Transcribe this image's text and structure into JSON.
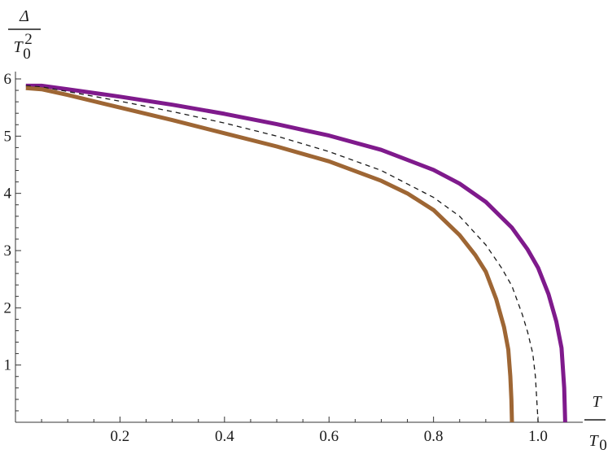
{
  "chart_data": {
    "type": "line",
    "title": "",
    "xlabel": {
      "numerator": "T",
      "denominator": "T",
      "denominator_subscript": "0"
    },
    "ylabel": {
      "numerator": "Δ",
      "denominator": "T",
      "denominator_subscript": "0",
      "denominator_superscript": "2"
    },
    "xlim": [
      0,
      1.07
    ],
    "ylim": [
      0,
      6
    ],
    "xticks": [
      "0.2",
      "0.4",
      "0.6",
      "0.8",
      "1.0"
    ],
    "xtick_values": [
      0.2,
      0.4,
      0.6,
      0.8,
      1.0
    ],
    "yticks": [
      "1",
      "2",
      "3",
      "4",
      "5",
      "6"
    ],
    "ytick_values": [
      1,
      2,
      3,
      4,
      5,
      6
    ],
    "grid": false,
    "legend": "none",
    "series": [
      {
        "color": "#7f1a8c",
        "style": "solid",
        "x": [
          0.02,
          0.05,
          0.1,
          0.2,
          0.3,
          0.4,
          0.5,
          0.6,
          0.7,
          0.8,
          0.85,
          0.9,
          0.95,
          0.98,
          1.0,
          1.02,
          1.035,
          1.045,
          1.05,
          1.052
        ],
        "y": [
          5.88,
          5.88,
          5.82,
          5.69,
          5.55,
          5.39,
          5.21,
          5.01,
          4.76,
          4.41,
          4.17,
          3.85,
          3.4,
          3.02,
          2.7,
          2.24,
          1.76,
          1.3,
          0.6,
          0
        ]
      },
      {
        "color": "#1a1a1a",
        "style": "dashed",
        "x": [
          0.02,
          0.05,
          0.1,
          0.2,
          0.3,
          0.4,
          0.5,
          0.6,
          0.7,
          0.8,
          0.85,
          0.9,
          0.93,
          0.95,
          0.97,
          0.98,
          0.99,
          0.995,
          1.0
        ],
        "y": [
          5.88,
          5.86,
          5.78,
          5.61,
          5.43,
          5.23,
          5.0,
          4.73,
          4.4,
          3.93,
          3.6,
          3.1,
          2.7,
          2.38,
          1.88,
          1.58,
          1.2,
          0.8,
          0
        ]
      },
      {
        "color": "#9e6634",
        "style": "solid",
        "x": [
          0.02,
          0.05,
          0.1,
          0.2,
          0.3,
          0.4,
          0.5,
          0.6,
          0.7,
          0.75,
          0.8,
          0.85,
          0.88,
          0.9,
          0.92,
          0.935,
          0.943,
          0.947,
          0.949,
          0.95
        ],
        "y": [
          5.84,
          5.82,
          5.72,
          5.5,
          5.28,
          5.05,
          4.82,
          4.56,
          4.22,
          4.0,
          3.71,
          3.27,
          2.92,
          2.63,
          2.15,
          1.66,
          1.27,
          0.8,
          0.4,
          0
        ]
      }
    ]
  }
}
